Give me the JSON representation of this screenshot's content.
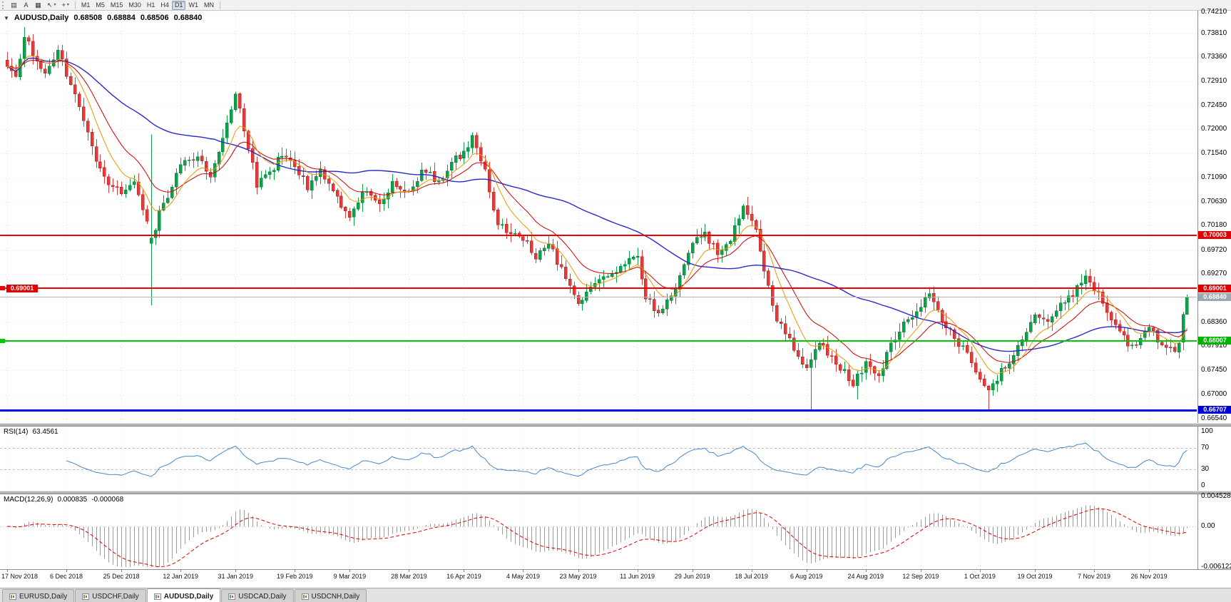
{
  "colors": {
    "up_fill": "#0CA24A",
    "up_stroke": "#077934",
    "down_fill": "#E23B3B",
    "down_stroke": "#A91F1F",
    "ma_fast": "#F09500",
    "ma_mid": "#D40000",
    "ma_slow": "#2A2AC8",
    "rsi_line": "#4687C7",
    "rsi_level_dash": "#BDBDBD",
    "macd_hist": "#9C9C9C",
    "macd_signal": "#E00000",
    "grid": "#E3E3E3",
    "axis_text": "#000000",
    "current_price_line": "#B4B4B4",
    "current_price_bg": "#9FA8B0"
  },
  "toolbar": {
    "left_tools": [
      {
        "name": "chart-window-icon",
        "glyph": "▤"
      },
      {
        "name": "text-annotation-button",
        "glyph": "A"
      },
      {
        "name": "template-icon",
        "glyph": "▦"
      },
      {
        "name": "cursor-tool-icon",
        "glyph": "↖",
        "caret": true
      },
      {
        "name": "crosshair-tool-icon",
        "glyph": "+",
        "caret": true
      }
    ],
    "timeframes": [
      {
        "label": "M1",
        "active": false
      },
      {
        "label": "M5",
        "active": false
      },
      {
        "label": "M15",
        "active": false
      },
      {
        "label": "M30",
        "active": false
      },
      {
        "label": "H1",
        "active": false
      },
      {
        "label": "H4",
        "active": false
      },
      {
        "label": "D1",
        "active": true
      },
      {
        "label": "W1",
        "active": false
      },
      {
        "label": "MN",
        "active": false
      }
    ]
  },
  "chart": {
    "title": {
      "collapse_icon": "▼",
      "symbol": "AUDUSD,Daily",
      "open": "0.68508",
      "high": "0.68884",
      "low": "0.68506",
      "close": "0.68840"
    },
    "price_axis": [
      "0.74210",
      "0.73810",
      "0.73360",
      "0.72910",
      "0.72450",
      "0.72000",
      "0.71540",
      "0.71090",
      "0.70630",
      "0.70180",
      "0.69720",
      "0.69270",
      "0.68810",
      "0.68360",
      "0.67910",
      "0.67450",
      "0.67000",
      "0.66540"
    ],
    "hlines": [
      {
        "price": 0.70003,
        "label": "0.70003",
        "color": "#F00000",
        "width": 2,
        "tag_bg": "#E00000",
        "left_label": false,
        "left_stub": false
      },
      {
        "price": 0.69001,
        "label": "0.69001",
        "color": "#F00000",
        "width": 2,
        "tag_bg": "#E00000",
        "left_label": true,
        "left_stub": true
      },
      {
        "price": 0.68007,
        "label": "0.68007",
        "color": "#00C800",
        "width": 2,
        "tag_bg": "#00B400",
        "left_label": false,
        "left_stub": true
      },
      {
        "price": 0.66707,
        "label": "0.66707",
        "color": "#0000F0",
        "width": 3,
        "tag_bg": "#0000D8",
        "left_label": false,
        "left_stub": false
      }
    ],
    "current_price": {
      "value": 0.6884,
      "label": "0.68840"
    },
    "date_axis": [
      "17 Nov 2018",
      "6 Dec 2018",
      "25 Dec 2018",
      "12 Jan 2019",
      "31 Jan 2019",
      "19 Feb 2019",
      "9 Mar 2019",
      "28 Mar 2019",
      "16 Apr 2019",
      "4 May 2019",
      "23 May 2019",
      "11 Jun 2019",
      "29 Jun 2019",
      "18 Jul 2019",
      "6 Aug 2019",
      "24 Aug 2019",
      "12 Sep 2019",
      "1 Oct 2019",
      "19 Oct 2019",
      "7 Nov 2019",
      "26 Nov 2019"
    ]
  },
  "chart_data": {
    "type": "candlestick",
    "symbol": "AUDUSD",
    "timeframe": "Daily",
    "bars": 280,
    "last_bar": {
      "open": 0.68508,
      "high": 0.68884,
      "low": 0.68506,
      "close": 0.6884
    },
    "price_path_anchors": [
      [
        0,
        0.7325
      ],
      [
        2,
        0.7295
      ],
      [
        4,
        0.738
      ],
      [
        6,
        0.734
      ],
      [
        9,
        0.731
      ],
      [
        12,
        0.735
      ],
      [
        14,
        0.73
      ],
      [
        17,
        0.7245
      ],
      [
        20,
        0.7165
      ],
      [
        23,
        0.711
      ],
      [
        27,
        0.7075
      ],
      [
        30,
        0.7095
      ],
      [
        33,
        0.703
      ],
      [
        34,
        0.699
      ],
      [
        36,
        0.704
      ],
      [
        39,
        0.709
      ],
      [
        41,
        0.714
      ],
      [
        45,
        0.715
      ],
      [
        48,
        0.7105
      ],
      [
        51,
        0.718
      ],
      [
        54,
        0.7265
      ],
      [
        56,
        0.72
      ],
      [
        59,
        0.7095
      ],
      [
        62,
        0.712
      ],
      [
        65,
        0.715
      ],
      [
        68,
        0.7135
      ],
      [
        71,
        0.709
      ],
      [
        74,
        0.7125
      ],
      [
        77,
        0.708
      ],
      [
        81,
        0.7035
      ],
      [
        84,
        0.7085
      ],
      [
        88,
        0.706
      ],
      [
        91,
        0.7095
      ],
      [
        95,
        0.7085
      ],
      [
        98,
        0.712
      ],
      [
        102,
        0.7105
      ],
      [
        105,
        0.7135
      ],
      [
        108,
        0.716
      ],
      [
        110,
        0.7185
      ],
      [
        113,
        0.712
      ],
      [
        116,
        0.702
      ],
      [
        119,
        0.7
      ],
      [
        122,
        0.6995
      ],
      [
        125,
        0.6955
      ],
      [
        128,
        0.6985
      ],
      [
        131,
        0.6935
      ],
      [
        135,
        0.6875
      ],
      [
        138,
        0.6905
      ],
      [
        142,
        0.6925
      ],
      [
        146,
        0.6945
      ],
      [
        149,
        0.696
      ],
      [
        151,
        0.6885
      ],
      [
        154,
        0.6855
      ],
      [
        157,
        0.688
      ],
      [
        160,
        0.694
      ],
      [
        162,
        0.6985
      ],
      [
        165,
        0.7005
      ],
      [
        168,
        0.6965
      ],
      [
        171,
        0.6995
      ],
      [
        174,
        0.705
      ],
      [
        176,
        0.7035
      ],
      [
        178,
        0.6975
      ],
      [
        180,
        0.6905
      ],
      [
        182,
        0.684
      ],
      [
        185,
        0.68
      ],
      [
        189,
        0.6745
      ],
      [
        192,
        0.6795
      ],
      [
        195,
        0.677
      ],
      [
        198,
        0.674
      ],
      [
        200,
        0.672
      ],
      [
        203,
        0.6755
      ],
      [
        206,
        0.673
      ],
      [
        209,
        0.68
      ],
      [
        213,
        0.684
      ],
      [
        216,
        0.687
      ],
      [
        218,
        0.689
      ],
      [
        221,
        0.684
      ],
      [
        224,
        0.6805
      ],
      [
        227,
        0.6775
      ],
      [
        230,
        0.6725
      ],
      [
        232,
        0.6705
      ],
      [
        235,
        0.6745
      ],
      [
        238,
        0.677
      ],
      [
        241,
        0.6815
      ],
      [
        243,
        0.685
      ],
      [
        246,
        0.684
      ],
      [
        249,
        0.6865
      ],
      [
        252,
        0.689
      ],
      [
        255,
        0.692
      ],
      [
        257,
        0.69
      ],
      [
        260,
        0.686
      ],
      [
        263,
        0.6815
      ],
      [
        266,
        0.679
      ],
      [
        268,
        0.68
      ],
      [
        270,
        0.6825
      ],
      [
        273,
        0.6795
      ],
      [
        276,
        0.678
      ],
      [
        278,
        0.6808
      ],
      [
        279,
        0.6884
      ]
    ],
    "overrides": [
      {
        "i": 4,
        "h": 0.7393
      },
      {
        "i": 34,
        "o": 0.6985,
        "c": 0.6995,
        "h": 0.719,
        "l": 0.6868
      },
      {
        "i": 190,
        "l": 0.6671
      },
      {
        "i": 201,
        "l": 0.669
      },
      {
        "i": 232,
        "l": 0.6671
      },
      {
        "i": 278,
        "c": 0.6851
      },
      {
        "i": 279,
        "o": 0.68508,
        "h": 0.68884,
        "l": 0.68506,
        "c": 0.6884
      }
    ],
    "moving_averages": [
      {
        "kind": "ema",
        "period": 8,
        "role": "ma_fast"
      },
      {
        "kind": "ema",
        "period": 16,
        "role": "ma_mid"
      },
      {
        "kind": "sma",
        "period": 50,
        "role": "ma_slow"
      }
    ]
  },
  "rsi": {
    "name": "RSI(14)",
    "value": "63.4561",
    "period": 14,
    "levels": [
      100,
      70,
      30,
      0
    ],
    "dashed_levels": [
      70,
      30
    ]
  },
  "macd": {
    "name": "MACD(12,26,9)",
    "main_value": "0.000835",
    "signal_value": "-0.000068",
    "fast": 12,
    "slow": 26,
    "signal": 9,
    "axis_labels": [
      "0.004528",
      "0.00",
      "-0.006122"
    ]
  },
  "tabs": {
    "items": [
      {
        "label": "EURUSD,Daily",
        "active": false
      },
      {
        "label": "USDCHF,Daily",
        "active": false
      },
      {
        "label": "AUDUSD,Daily",
        "active": true
      },
      {
        "label": "USDCAD,Daily",
        "active": false
      },
      {
        "label": "USDCNH,Daily",
        "active": false
      }
    ]
  }
}
